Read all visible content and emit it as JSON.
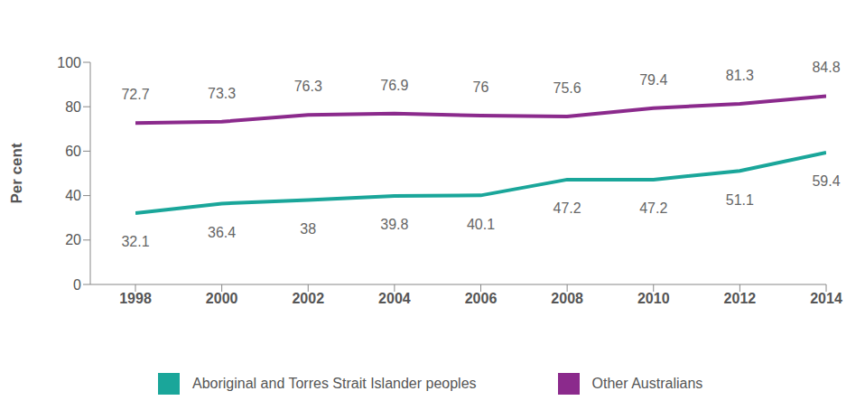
{
  "chart_data": {
    "type": "line",
    "x": [
      1998,
      2000,
      2002,
      2004,
      2006,
      2008,
      2010,
      2012,
      2014
    ],
    "xlim": [
      1998,
      2014
    ],
    "xticks": [
      1998,
      2000,
      2002,
      2004,
      2006,
      2008,
      2010,
      2012,
      2014
    ],
    "ylim": [
      0,
      100
    ],
    "yticks": [
      0,
      20,
      40,
      60,
      80,
      100
    ],
    "y_label": "Per cent",
    "grid": false,
    "legend": "bottom",
    "data_labels": true,
    "series": [
      {
        "name": "Aboriginal and Torres Strait Islander peoples",
        "color": "#1aa69a",
        "values": [
          32.1,
          36.4,
          38,
          39.8,
          40.1,
          47.2,
          47.2,
          51.1,
          59.4
        ]
      },
      {
        "name": "Other Australians",
        "color": "#8b2a8c",
        "values": [
          72.7,
          73.3,
          76.3,
          76.9,
          76,
          75.6,
          79.4,
          81.3,
          84.8
        ]
      }
    ]
  }
}
